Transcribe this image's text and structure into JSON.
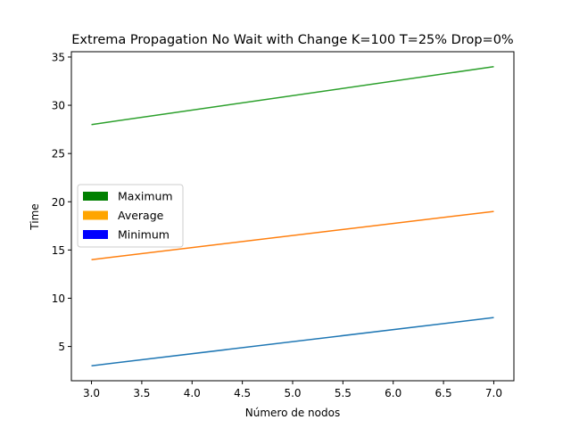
{
  "chart_data": {
    "type": "line",
    "title": "Extrema Propagation No Wait with Change K=100 T=25% Drop=0%",
    "xlabel": "Número de nodos",
    "ylabel": "Time",
    "xlim": [
      2.8,
      7.2
    ],
    "ylim": [
      1.45,
      35.55
    ],
    "xticks": [
      "3.0",
      "3.5",
      "4.0",
      "4.5",
      "5.0",
      "5.5",
      "6.0",
      "6.5",
      "7.0"
    ],
    "yticks": [
      "5",
      "10",
      "15",
      "20",
      "25",
      "30",
      "35"
    ],
    "x": [
      3,
      7
    ],
    "series": [
      {
        "name": "Maximum",
        "values": [
          28,
          34
        ],
        "line_color": "#2ca02c"
      },
      {
        "name": "Average",
        "values": [
          14,
          19
        ],
        "line_color": "#ff7f0e"
      },
      {
        "name": "Minimum",
        "values": [
          3,
          8
        ],
        "line_color": "#1f77b4"
      }
    ],
    "legend": {
      "placement": "center-left",
      "entries": [
        {
          "label": "Maximum",
          "color": "#008000"
        },
        {
          "label": "Average",
          "color": "#ffa500"
        },
        {
          "label": "Minimum",
          "color": "#0000ff"
        }
      ]
    },
    "grid": false
  }
}
